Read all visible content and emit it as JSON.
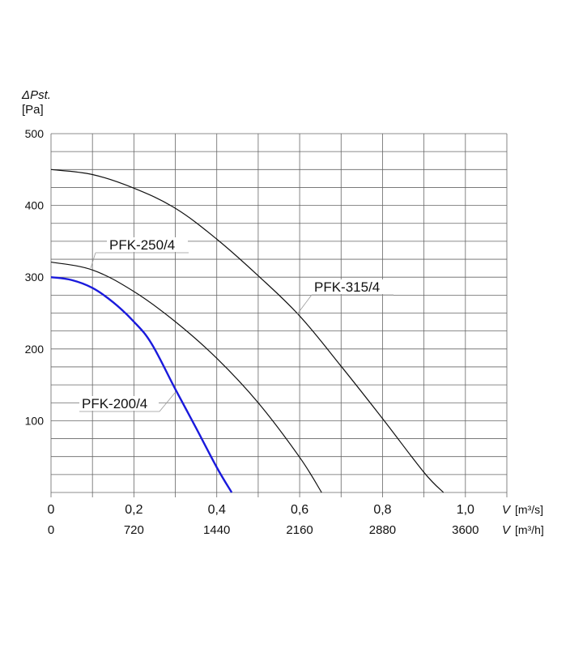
{
  "chart_data": {
    "type": "line",
    "title": "",
    "ylabel_symbol": "ΔPst.",
    "ylabel_unit": "[Pa]",
    "xlabel_symbol": "V",
    "xlabel_unit_primary": "[m³/s]",
    "xlabel_unit_secondary": "[m³/h]",
    "xlim": [
      0,
      1.1
    ],
    "ylim": [
      0,
      500
    ],
    "grid": true,
    "x_grid_step": 0.1,
    "y_grid_step": 25,
    "y_ticks": [
      0,
      100,
      200,
      300,
      400,
      500
    ],
    "y_tick_labels": [
      "",
      "100",
      "200",
      "300",
      "400",
      "500"
    ],
    "x_ticks": [
      0,
      0.2,
      0.4,
      0.6,
      0.8,
      1.0
    ],
    "x_tick_labels": [
      "0",
      "0,2",
      "0,4",
      "0,6",
      "0,8",
      "1,0"
    ],
    "x2_tick_labels": [
      "0",
      "720",
      "1440",
      "2160",
      "2880",
      "3600"
    ],
    "series": [
      {
        "name": "PFK-315/4",
        "color": "#111111",
        "x": [
          0,
          0.1,
          0.2,
          0.3,
          0.4,
          0.5,
          0.6,
          0.7,
          0.8,
          0.9,
          0.947
        ],
        "y": [
          450,
          443,
          424,
          396,
          353,
          302,
          246,
          176,
          103,
          28,
          0
        ]
      },
      {
        "name": "PFK-250/4",
        "color": "#111111",
        "x": [
          0,
          0.1,
          0.2,
          0.3,
          0.4,
          0.5,
          0.6,
          0.653
        ],
        "y": [
          321,
          310,
          280,
          238,
          187,
          125,
          49,
          0
        ]
      },
      {
        "name": "PFK-200/4",
        "color": "#1a1adc",
        "x": [
          0,
          0.05,
          0.1,
          0.15,
          0.2,
          0.243,
          0.3,
          0.35,
          0.4,
          0.436
        ],
        "y": [
          300,
          296,
          285,
          265,
          238,
          207,
          144,
          90,
          35,
          0
        ]
      }
    ]
  }
}
